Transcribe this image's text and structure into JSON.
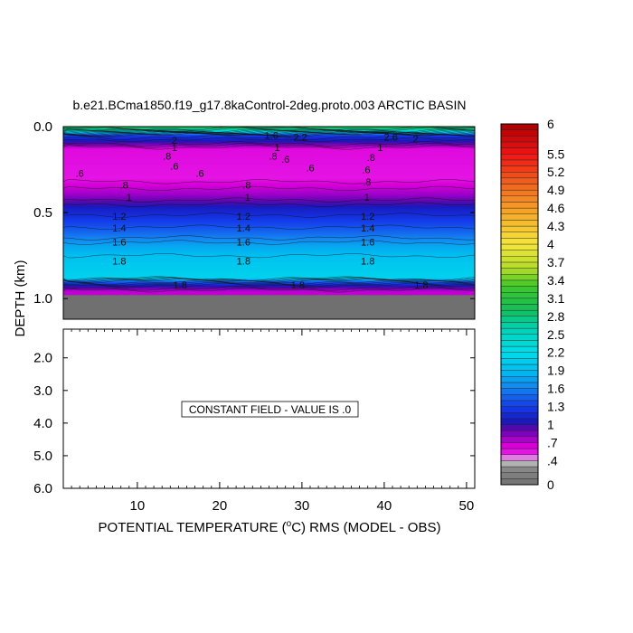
{
  "chart_data": {
    "type": "heatmap",
    "title": "b.e21.BCma1850.f19_g17.8kaControl-2deg.proto.003 ARCTIC BASIN",
    "xlabel_parts": [
      "POTENTIAL TEMPERATURE (",
      "o",
      "C) RMS (MODEL - OBS)"
    ],
    "ylabel": "DEPTH (km)",
    "x_ticks": [
      "10",
      "20",
      "30",
      "40",
      "50"
    ],
    "x_tick_values": [
      10,
      20,
      30,
      40,
      50
    ],
    "xlim": [
      1,
      51
    ],
    "upper_panel": {
      "ylim": [
        0.0,
        1.12
      ],
      "y_ticks": [
        "0.0",
        "0.5",
        "1.0"
      ],
      "y_tick_values": [
        0.0,
        0.5,
        1.0
      ],
      "fill_below_km": 0.98,
      "depth_profile": [
        {
          "depth": 0.0,
          "value": 3.0
        },
        {
          "depth": 0.02,
          "value": 2.6
        },
        {
          "depth": 0.05,
          "value": 1.3
        },
        {
          "depth": 0.09,
          "value": 1.0
        },
        {
          "depth": 0.13,
          "value": 0.6
        },
        {
          "depth": 0.3,
          "value": 0.55
        },
        {
          "depth": 0.4,
          "value": 0.8
        },
        {
          "depth": 0.48,
          "value": 1.1
        },
        {
          "depth": 0.55,
          "value": 1.3
        },
        {
          "depth": 0.62,
          "value": 1.5
        },
        {
          "depth": 0.7,
          "value": 1.8
        },
        {
          "depth": 0.8,
          "value": 2.0
        },
        {
          "depth": 0.88,
          "value": 2.1
        },
        {
          "depth": 0.9,
          "value": 1.5
        },
        {
          "depth": 0.93,
          "value": 1.0
        },
        {
          "depth": 0.96,
          "value": 0.7
        }
      ],
      "contour_labels": [
        {
          "text": "1",
          "x": 14.5,
          "depth": 0.12
        },
        {
          "text": ".8",
          "x": 13.6,
          "depth": 0.17
        },
        {
          "text": ".6",
          "x": 14.5,
          "depth": 0.23
        },
        {
          "text": ".6",
          "x": 3.0,
          "depth": 0.27
        },
        {
          "text": ".6",
          "x": 17.6,
          "depth": 0.27
        },
        {
          "text": ".8",
          "x": 8.4,
          "depth": 0.34
        },
        {
          "text": "1",
          "x": 9.0,
          "depth": 0.41
        },
        {
          "text": "1",
          "x": 27.0,
          "depth": 0.12
        },
        {
          "text": ".6",
          "x": 28.0,
          "depth": 0.19
        },
        {
          "text": ".8",
          "x": 26.5,
          "depth": 0.17
        },
        {
          "text": ".6",
          "x": 31.0,
          "depth": 0.24
        },
        {
          "text": ".8",
          "x": 23.3,
          "depth": 0.34
        },
        {
          "text": "1",
          "x": 23.4,
          "depth": 0.41
        },
        {
          "text": "1",
          "x": 39.5,
          "depth": 0.12
        },
        {
          "text": ".8",
          "x": 38.4,
          "depth": 0.18
        },
        {
          "text": ".6",
          "x": 37.8,
          "depth": 0.25
        },
        {
          "text": ".8",
          "x": 37.9,
          "depth": 0.32
        },
        {
          "text": "1",
          "x": 37.9,
          "depth": 0.41
        },
        {
          "text": "1.2",
          "x": 7.8,
          "depth": 0.52
        },
        {
          "text": "1.4",
          "x": 7.8,
          "depth": 0.59
        },
        {
          "text": "1.6",
          "x": 7.8,
          "depth": 0.67
        },
        {
          "text": "1.8",
          "x": 7.8,
          "depth": 0.78
        },
        {
          "text": "1.2",
          "x": 22.9,
          "depth": 0.52
        },
        {
          "text": "1.4",
          "x": 22.9,
          "depth": 0.59
        },
        {
          "text": "1.6",
          "x": 22.9,
          "depth": 0.67
        },
        {
          "text": "1.8",
          "x": 22.9,
          "depth": 0.78
        },
        {
          "text": "1.2",
          "x": 38.0,
          "depth": 0.52
        },
        {
          "text": "1.4",
          "x": 38.0,
          "depth": 0.59
        },
        {
          "text": "1.6",
          "x": 38.0,
          "depth": 0.67
        },
        {
          "text": "1.8",
          "x": 38.0,
          "depth": 0.78
        },
        {
          "text": "1.8",
          "x": 15.2,
          "depth": 0.92
        },
        {
          "text": "1.8",
          "x": 29.5,
          "depth": 0.92
        },
        {
          "text": "1.8",
          "x": 44.5,
          "depth": 0.92
        },
        {
          "text": "2",
          "x": 14.5,
          "depth": 0.08
        },
        {
          "text": "1.6",
          "x": 26.3,
          "depth": 0.05
        },
        {
          "text": "2.2",
          "x": 29.8,
          "depth": 0.06
        },
        {
          "text": "2.6",
          "x": 40.8,
          "depth": 0.06
        },
        {
          "text": "2",
          "x": 43.8,
          "depth": 0.07
        }
      ]
    },
    "lower_panel": {
      "ylim": [
        1.12,
        6.0
      ],
      "y_ticks": [
        "2.0",
        "3.0",
        "4.0",
        "5.0",
        "6.0"
      ],
      "y_tick_values": [
        2.0,
        3.0,
        4.0,
        5.0,
        6.0
      ],
      "message": "CONSTANT FIELD - VALUE IS .0"
    },
    "colorbar": {
      "min": 0,
      "max": 6,
      "step": 0.1,
      "labels": [
        {
          "text": "6",
          "value": 6.0
        },
        {
          "text": "5.5",
          "value": 5.5
        },
        {
          "text": "5.2",
          "value": 5.2
        },
        {
          "text": "4.9",
          "value": 4.9
        },
        {
          "text": "4.6",
          "value": 4.6
        },
        {
          "text": "4.3",
          "value": 4.3
        },
        {
          "text": "4",
          "value": 4.0
        },
        {
          "text": "3.7",
          "value": 3.7
        },
        {
          "text": "3.4",
          "value": 3.4
        },
        {
          "text": "3.1",
          "value": 3.1
        },
        {
          "text": "2.8",
          "value": 2.8
        },
        {
          "text": "2.5",
          "value": 2.5
        },
        {
          "text": "2.2",
          "value": 2.2
        },
        {
          "text": "1.9",
          "value": 1.9
        },
        {
          "text": "1.6",
          "value": 1.6
        },
        {
          "text": "1.3",
          "value": 1.3
        },
        {
          "text": "1",
          "value": 1.0
        },
        {
          "text": ".7",
          "value": 0.7
        },
        {
          "text": ".4",
          "value": 0.4
        },
        {
          "text": "0",
          "value": 0.0
        }
      ]
    }
  }
}
